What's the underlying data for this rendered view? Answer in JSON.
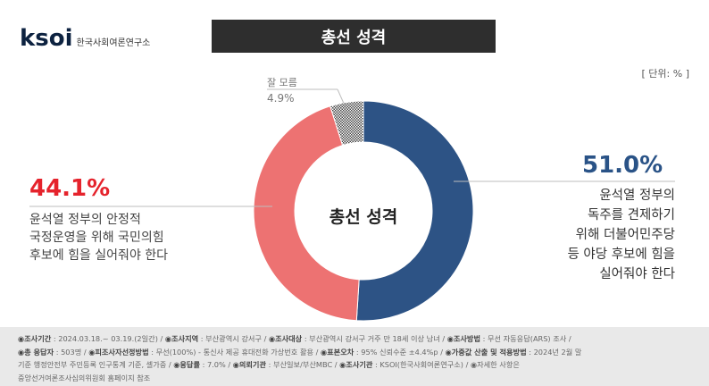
{
  "logo": {
    "mark": "ksoi",
    "sub": "한국사회여론연구소"
  },
  "title": "총선 성격",
  "unit": "[ 단위: % ]",
  "chart_data": {
    "type": "pie",
    "title": "총선 성격",
    "slices": [
      {
        "label": "윤석열 정부의 독주를 견제하기 위해 더불어민주당 등 야당 후보에 힘을 실어줘야 한다",
        "value": 51.0,
        "color": "#2d5385"
      },
      {
        "label": "윤석열 정부의 안정적 국정운영을 위해 국민의힘 후보에 힘을 실어줘야 한다",
        "value": 44.1,
        "color": "#ed7272"
      },
      {
        "label": "잘 모름",
        "value": 4.9,
        "color": "#9a9a9a"
      }
    ]
  },
  "labels": {
    "red_pct": "44.1%",
    "red_desc": [
      "윤석열 정부의 안정적",
      "국정운영을 위해 국민의힘",
      "후보에 힘을 실어줘야 한다"
    ],
    "blue_pct": "51.0%",
    "blue_desc": [
      "윤석열 정부의",
      "독주를 견제하기",
      "위해 더불어민주당",
      "등 야당 후보에 힘을",
      "실어줘야 한다"
    ],
    "dk_label": "잘 모름",
    "dk_value": "4.9%",
    "center": "총선 성격"
  },
  "footer": {
    "line1": [
      {
        "k": "◉조사기간",
        "v": " : 2024.03.18.~  03.19.(2일간)   /  "
      },
      {
        "k": "◉조사지역",
        "v": " : 부산광역시 강서구  /  "
      },
      {
        "k": "◉조사대상",
        "v": " : 부산광역시 강서구 거주 만 18세 이상 남녀  /  "
      },
      {
        "k": "◉조사방법",
        "v": " : 무선 자동응답(ARS) 조사  /"
      }
    ],
    "line2": [
      {
        "k": "◉총 응답자",
        "v": " : 503명  /  "
      },
      {
        "k": "◉피조사자선정방법",
        "v": " : 무선(100%) - 통신사 제공 휴대전화 가상번호 활용  /  "
      },
      {
        "k": "◉표본오차",
        "v": " : 95% 신뢰수준 ±4.4%p  /  "
      },
      {
        "k": "◉가중값 산출 및 적용방법",
        "v": " : 2024년 2월 말"
      }
    ],
    "line3": [
      {
        "k": "",
        "v": "기준 행정안전부 주민등록 인구통계 기준, 셀가중  /  "
      },
      {
        "k": "◉응답률",
        "v": " : 7.0%  /  "
      },
      {
        "k": "◉의뢰기관",
        "v": " : 부산일보/부산MBC  /  "
      },
      {
        "k": "◉조사기관",
        "v": " : KSOI(한국사회여론연구소)  /  ◉자세한 사항은"
      }
    ],
    "line4": [
      {
        "k": "",
        "v": "중앙선거여론조사심의위원회 홈페이지 참조"
      }
    ]
  }
}
